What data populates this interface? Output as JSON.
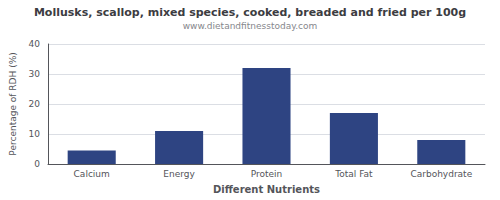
{
  "chart_data": {
    "type": "bar",
    "title": "Mollusks, scallop, mixed species, cooked, breaded and fried per 100g",
    "subtitle": "www.dietandfitnesstoday.com",
    "xlabel": "Different Nutrients",
    "ylabel": "Percentage of RDH (%)",
    "categories": [
      "Calcium",
      "Energy",
      "Protein",
      "Total Fat",
      "Carbohydrate"
    ],
    "values": [
      4.5,
      11.0,
      32.0,
      17.0,
      8.0
    ],
    "color": "#2e4482",
    "ylim": [
      0,
      40
    ],
    "yticks": [
      0,
      10,
      20,
      30,
      40
    ],
    "grid": true
  }
}
